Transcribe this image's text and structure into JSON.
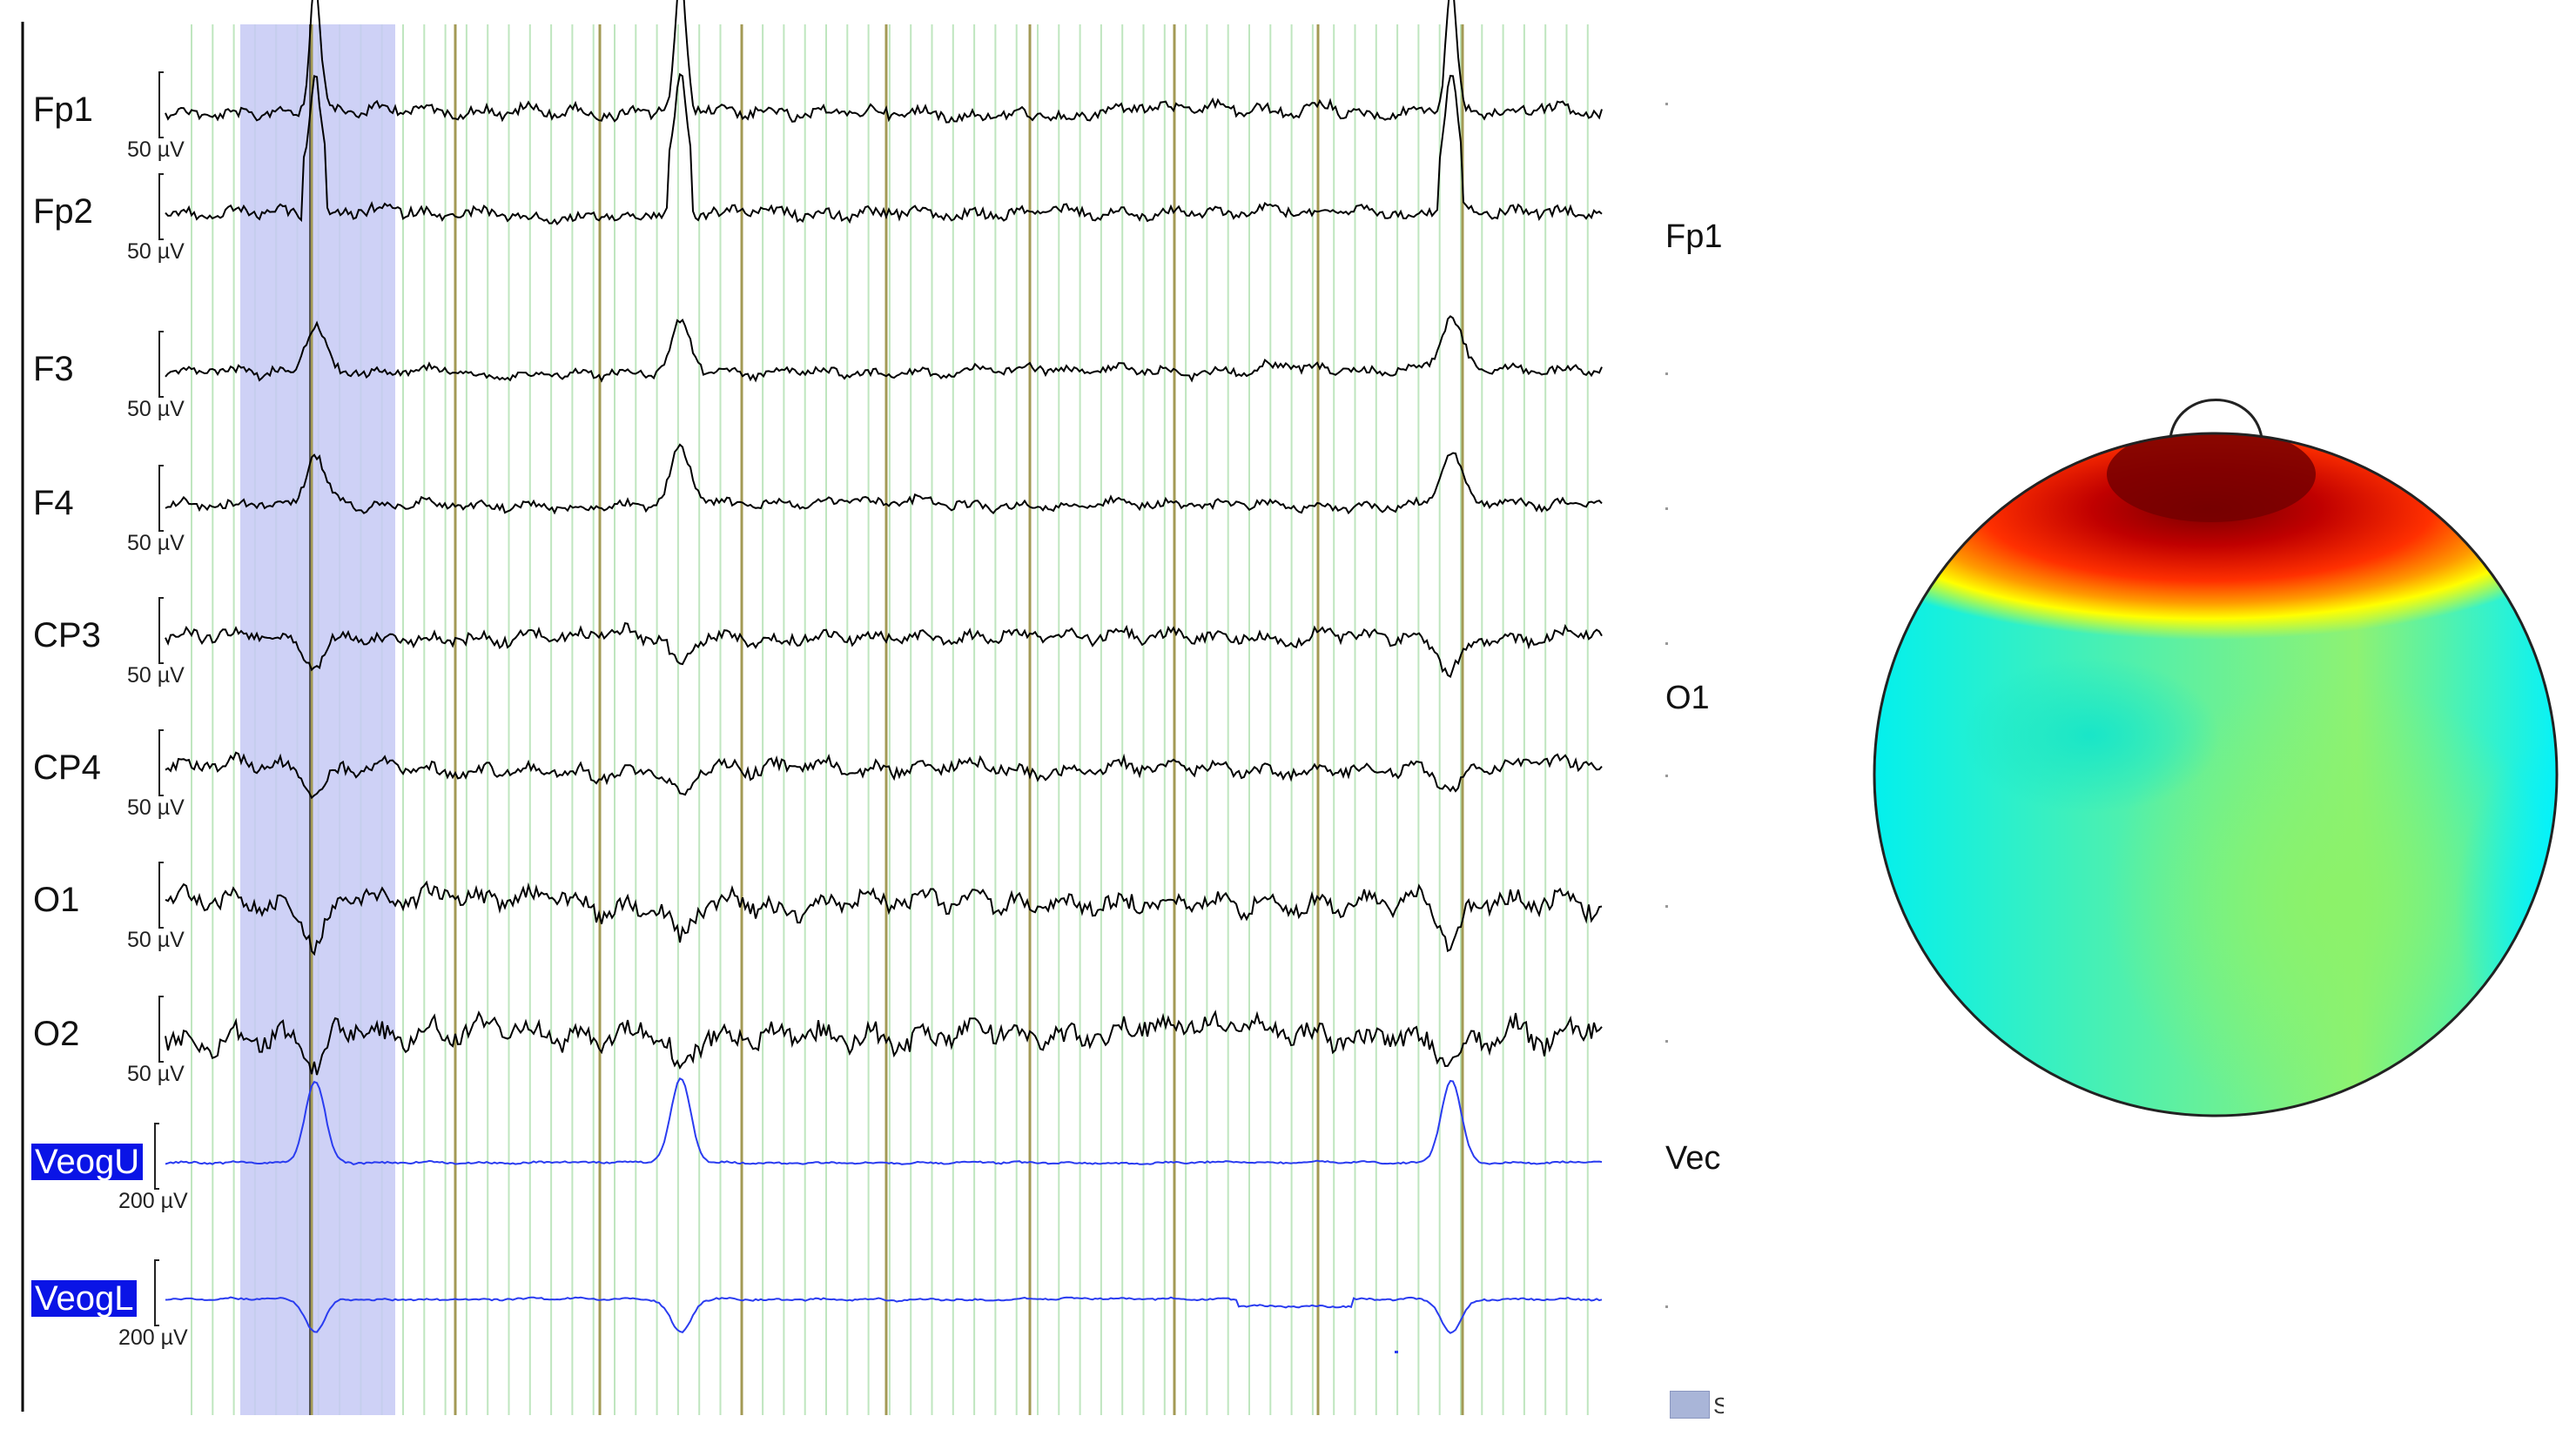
{
  "channels": [
    {
      "name": "Fp1",
      "scale": "50 µV",
      "selected": false
    },
    {
      "name": "Fp2",
      "scale": "50 µV",
      "selected": false
    },
    {
      "name": "F3",
      "scale": "50 µV",
      "selected": false
    },
    {
      "name": "F4",
      "scale": "50 µV",
      "selected": false
    },
    {
      "name": "CP3",
      "scale": "50 µV",
      "selected": false
    },
    {
      "name": "CP4",
      "scale": "50 µV",
      "selected": false
    },
    {
      "name": "O1",
      "scale": "50 µV",
      "selected": false
    },
    {
      "name": "O2",
      "scale": "50 µV",
      "selected": false
    },
    {
      "name": "VeogU",
      "scale": "200 µV",
      "selected": true
    },
    {
      "name": "VeogL",
      "scale": "200 µV",
      "selected": true
    }
  ],
  "side_channels": [
    "Fp1",
    "O1",
    "Vec"
  ],
  "legend_fragment": "S",
  "colors": {
    "eeg_trace": "#000000",
    "eog_trace": "#2a3cf0",
    "selection": "#c6c9f5",
    "marker": "#a39a55",
    "grid": "#bfe6bf"
  },
  "topomap": {
    "colormap": "jet",
    "peak_region": "frontal",
    "description_icon": "head-nose-icon"
  }
}
